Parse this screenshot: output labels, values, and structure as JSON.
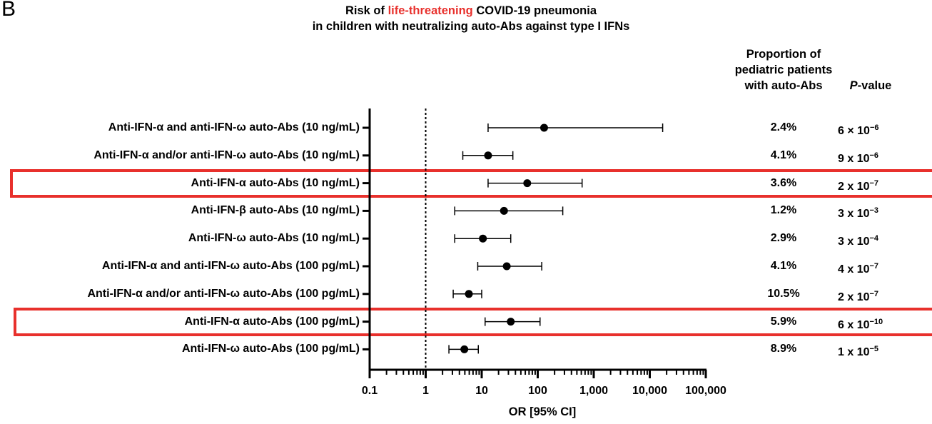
{
  "panel_letter": "B",
  "title": {
    "line1_pre": "Risk of ",
    "line1_highlight": "life-threatening",
    "line1_post": " COVID-19 pneumonia",
    "line2": "in children with neutralizing auto-Abs against type I IFNs",
    "highlight_color": "#e8302c"
  },
  "columns": {
    "proportion_header": [
      "Proportion of",
      "pediatric patients",
      "with auto-Abs"
    ],
    "pvalue_header_italic": "P",
    "pvalue_header_rest": "-value"
  },
  "highlight_box_color": "#e8302c",
  "chart_data": {
    "type": "forest",
    "xlabel": "OR [95% CI]",
    "xscale": "log",
    "xlim": [
      0.1,
      100000
    ],
    "xticks": [
      "0.1",
      "1",
      "10",
      "100",
      "1,000",
      "10,000",
      "100,000"
    ],
    "xtick_values": [
      0.1,
      1,
      10,
      100,
      1000,
      10000,
      100000
    ],
    "reference_line": 1,
    "rows": [
      {
        "label": "Anti-IFN-α and anti-IFN-ω auto-Abs (10 ng/mL)",
        "or": 130,
        "ci_low": 13,
        "ci_high": 17000,
        "proportion": "2.4%",
        "p_base": "6 × 10",
        "p_exp": "−6",
        "highlight": false
      },
      {
        "label": "Anti-IFN-α and/or anti-IFN-ω auto-Abs (10 ng/mL)",
        "or": 13,
        "ci_low": 4.6,
        "ci_high": 36,
        "proportion": "4.1%",
        "p_base": "9 x 10",
        "p_exp": "−6",
        "highlight": false
      },
      {
        "label": "Anti-IFN-α auto-Abs (10 ng/mL)",
        "or": 65,
        "ci_low": 13,
        "ci_high": 620,
        "proportion": "3.6%",
        "p_base": "2 x 10",
        "p_exp": "−7",
        "highlight": true
      },
      {
        "label": "Anti-IFN-β auto-Abs (10 ng/mL)",
        "or": 25,
        "ci_low": 3.3,
        "ci_high": 280,
        "proportion": "1.2%",
        "p_base": "3 x 10",
        "p_exp": "−3",
        "highlight": false
      },
      {
        "label": "Anti-IFN-ω auto-Abs (10 ng/mL)",
        "or": 10.5,
        "ci_low": 3.3,
        "ci_high": 33,
        "proportion": "2.9%",
        "p_base": "3 x  10",
        "p_exp": "−4",
        "highlight": false
      },
      {
        "label": "Anti-IFN-α and anti-IFN-ω auto-Abs (100 pg/mL)",
        "or": 28,
        "ci_low": 8.5,
        "ci_high": 118,
        "proportion": "4.1%",
        "p_base": "4 x 10",
        "p_exp": "−7",
        "highlight": false
      },
      {
        "label": "Anti-IFN-α and/or anti-IFN-ω auto-Abs (100 pg/mL)",
        "or": 5.9,
        "ci_low": 3.1,
        "ci_high": 10,
        "proportion": "10.5%",
        "p_base": "2 x 10",
        "p_exp": "−7",
        "highlight": false
      },
      {
        "label": "Anti-IFN-α auto-Abs (100 pg/mL)",
        "or": 33,
        "ci_low": 11.5,
        "ci_high": 110,
        "proportion": "5.9%",
        "p_base": "6 x 10",
        "p_exp": "−10",
        "highlight": true
      },
      {
        "label": "Anti-IFN-ω auto-Abs (100 pg/mL)",
        "or": 4.9,
        "ci_low": 2.6,
        "ci_high": 8.7,
        "proportion": "8.9%",
        "p_base": "1 x 10",
        "p_exp": "−5",
        "highlight": false
      }
    ]
  }
}
